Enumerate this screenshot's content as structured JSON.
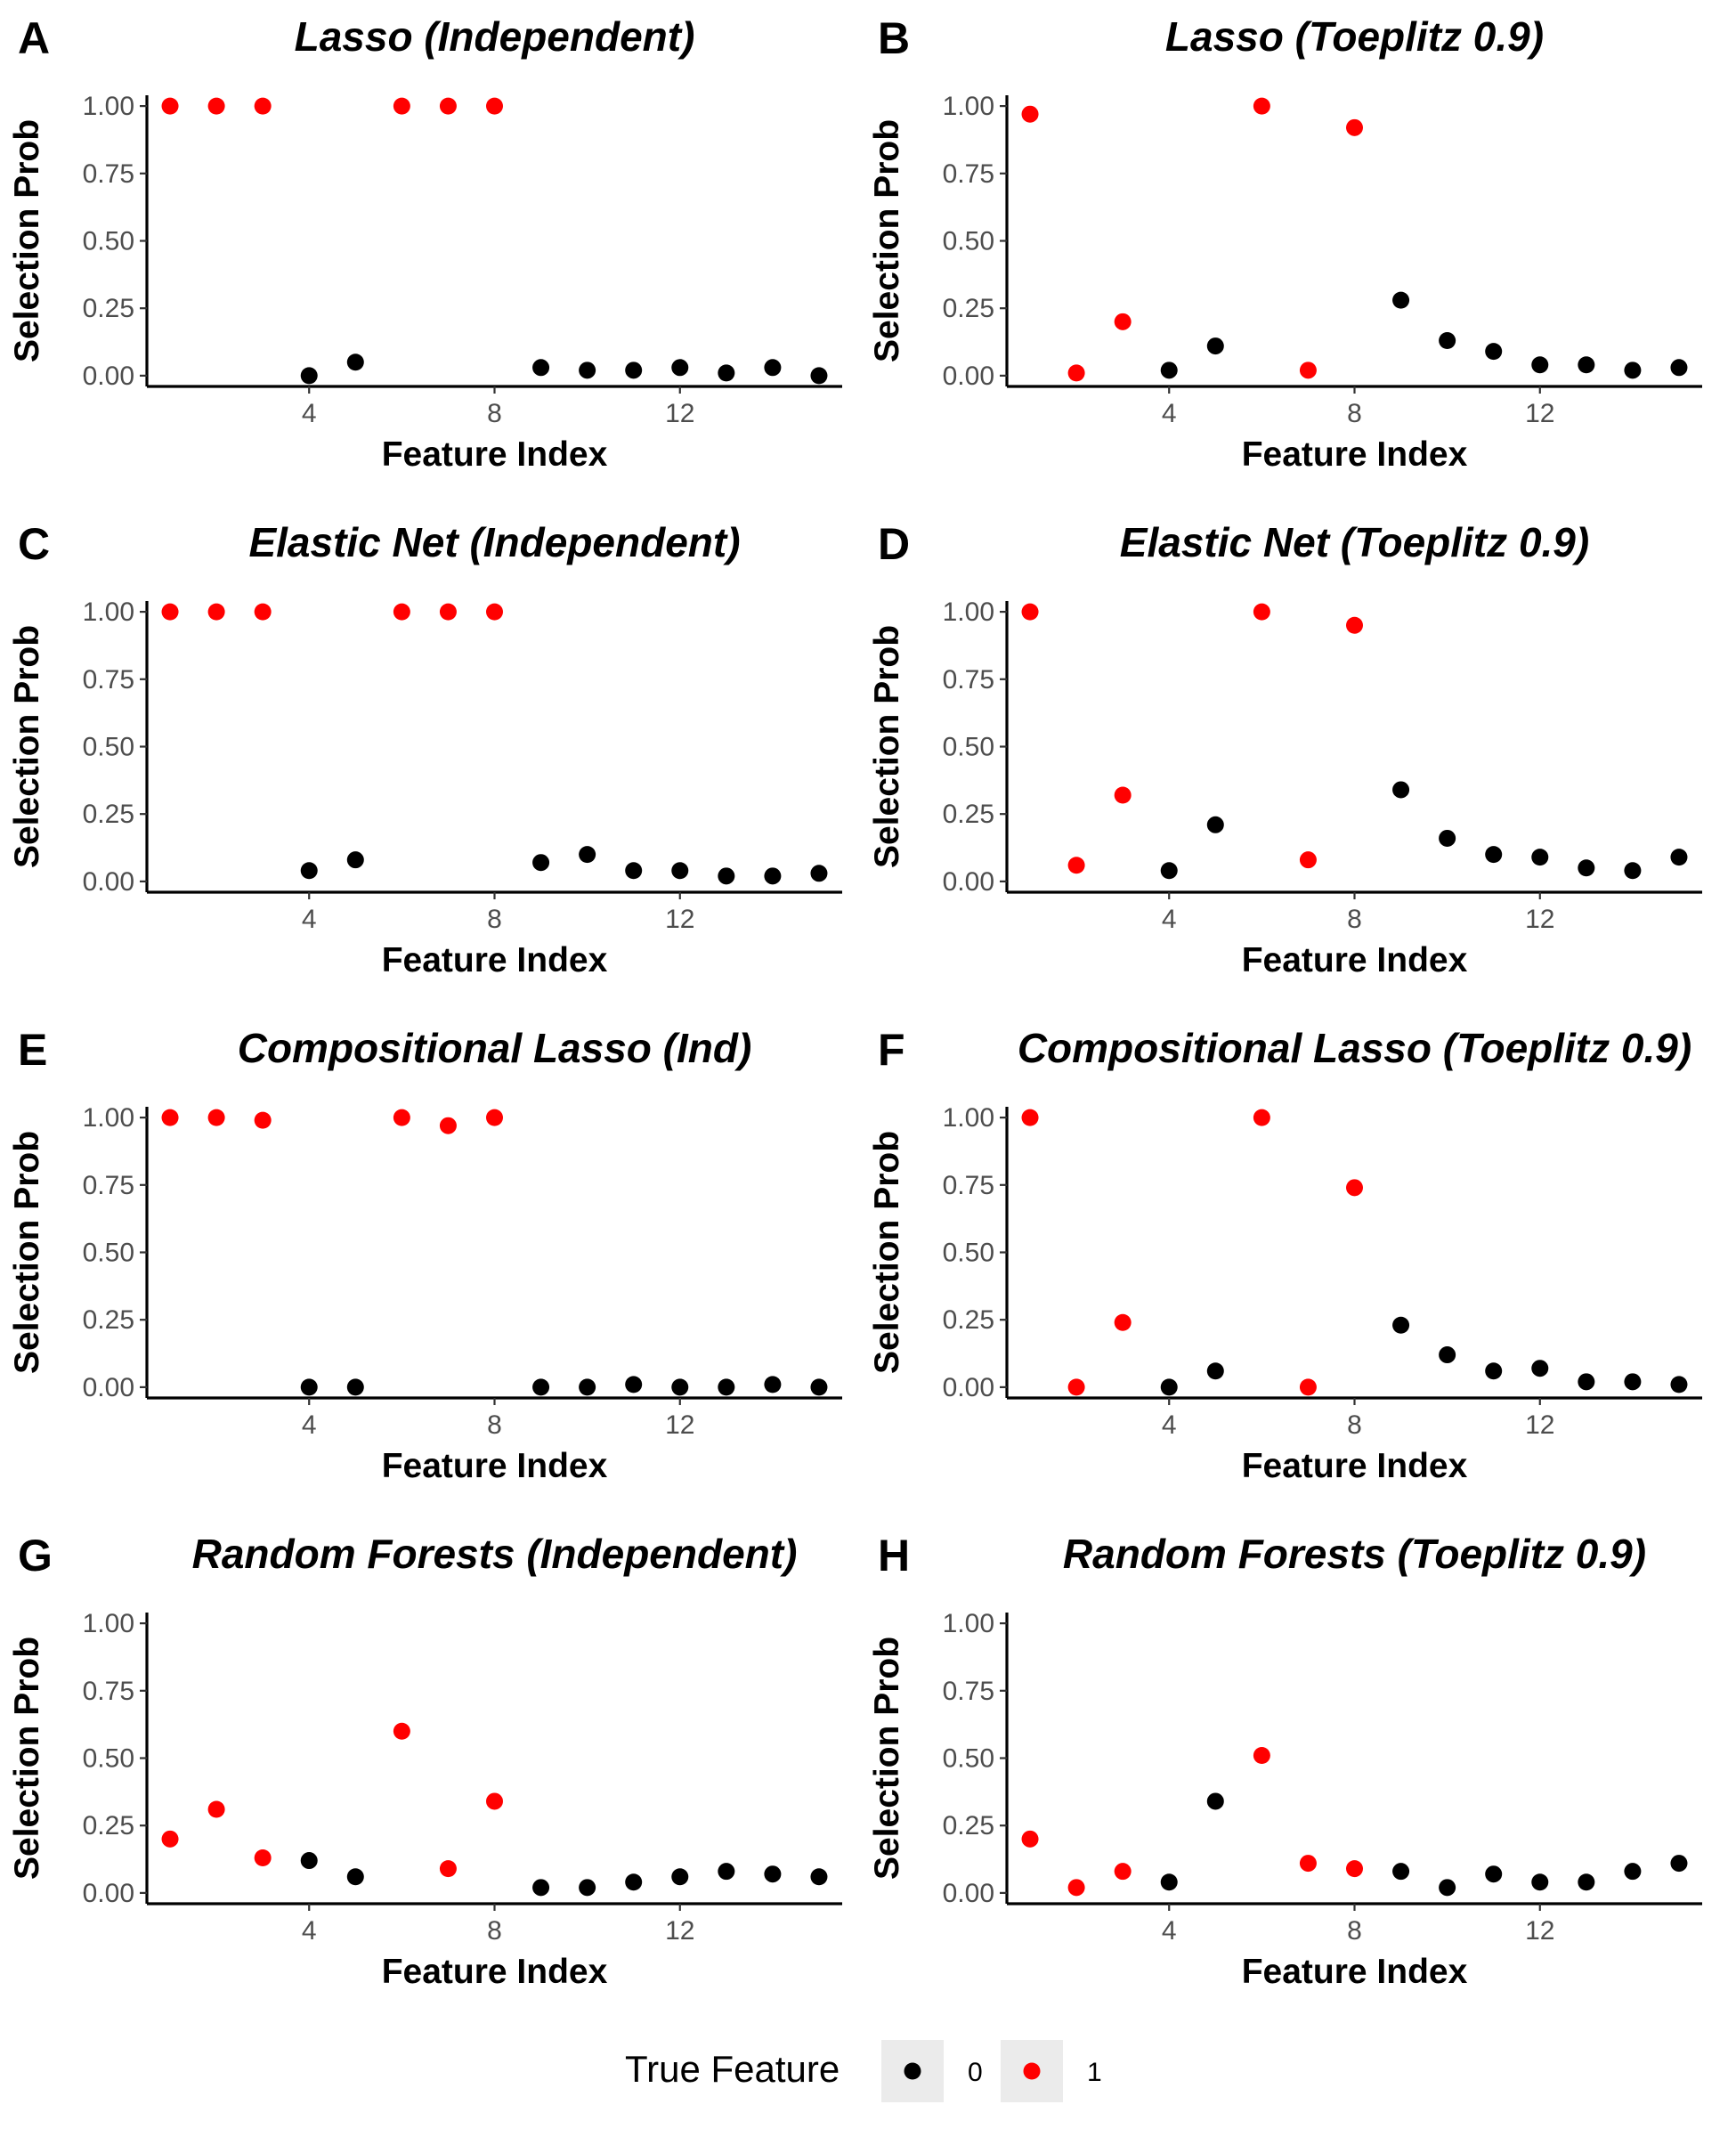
{
  "legend": {
    "title": "True Feature",
    "entries": [
      {
        "label": "0",
        "color": "#000000"
      },
      {
        "label": "1",
        "color": "#ff0000"
      }
    ]
  },
  "colors": {
    "false_feature": "#000000",
    "true_feature": "#ff0000",
    "legend_key_bg": "#ebebeb"
  },
  "chart_data": [
    {
      "letter": "A",
      "type": "scatter",
      "title": "Lasso (Independent)",
      "xlabel": "Feature Index",
      "ylabel": "Selection Prob",
      "xticks": [
        4,
        8,
        12
      ],
      "yticks": [
        "0.00",
        "0.25",
        "0.50",
        "0.75",
        "1.00"
      ],
      "xlim": [
        0.5,
        15.5
      ],
      "ylim": [
        -0.04,
        1.04
      ],
      "grid": false,
      "series": [
        {
          "name": "0",
          "x": [
            4,
            5,
            9,
            10,
            11,
            12,
            13,
            14,
            15
          ],
          "y": [
            0.0,
            0.05,
            0.03,
            0.02,
            0.02,
            0.03,
            0.01,
            0.03,
            0.0
          ]
        },
        {
          "name": "1",
          "x": [
            1,
            2,
            3,
            6,
            7,
            8
          ],
          "y": [
            1.0,
            1.0,
            1.0,
            1.0,
            1.0,
            1.0
          ]
        }
      ]
    },
    {
      "letter": "B",
      "type": "scatter",
      "title": "Lasso (Toeplitz 0.9)",
      "xlabel": "Feature Index",
      "ylabel": "Selection Prob",
      "xticks": [
        4,
        8,
        12
      ],
      "yticks": [
        "0.00",
        "0.25",
        "0.50",
        "0.75",
        "1.00"
      ],
      "xlim": [
        0.5,
        15.5
      ],
      "ylim": [
        -0.04,
        1.04
      ],
      "grid": false,
      "series": [
        {
          "name": "0",
          "x": [
            4,
            5,
            9,
            10,
            11,
            12,
            13,
            14,
            15
          ],
          "y": [
            0.02,
            0.11,
            0.28,
            0.13,
            0.09,
            0.04,
            0.04,
            0.02,
            0.03
          ]
        },
        {
          "name": "1",
          "x": [
            1,
            2,
            3,
            6,
            7,
            8
          ],
          "y": [
            0.97,
            0.01,
            0.2,
            1.0,
            0.02,
            0.92
          ]
        }
      ]
    },
    {
      "letter": "C",
      "type": "scatter",
      "title": "Elastic Net (Independent)",
      "xlabel": "Feature Index",
      "ylabel": "Selection Prob",
      "xticks": [
        4,
        8,
        12
      ],
      "yticks": [
        "0.00",
        "0.25",
        "0.50",
        "0.75",
        "1.00"
      ],
      "xlim": [
        0.5,
        15.5
      ],
      "ylim": [
        -0.04,
        1.04
      ],
      "grid": false,
      "series": [
        {
          "name": "0",
          "x": [
            4,
            5,
            9,
            10,
            11,
            12,
            13,
            14,
            15
          ],
          "y": [
            0.04,
            0.08,
            0.07,
            0.1,
            0.04,
            0.04,
            0.02,
            0.02,
            0.03
          ]
        },
        {
          "name": "1",
          "x": [
            1,
            2,
            3,
            6,
            7,
            8
          ],
          "y": [
            1.0,
            1.0,
            1.0,
            1.0,
            1.0,
            1.0
          ]
        }
      ]
    },
    {
      "letter": "D",
      "type": "scatter",
      "title": "Elastic Net (Toeplitz 0.9)",
      "xlabel": "Feature Index",
      "ylabel": "Selection Prob",
      "xticks": [
        4,
        8,
        12
      ],
      "yticks": [
        "0.00",
        "0.25",
        "0.50",
        "0.75",
        "1.00"
      ],
      "xlim": [
        0.5,
        15.5
      ],
      "ylim": [
        -0.04,
        1.04
      ],
      "grid": false,
      "series": [
        {
          "name": "0",
          "x": [
            4,
            5,
            9,
            10,
            11,
            12,
            13,
            14,
            15
          ],
          "y": [
            0.04,
            0.21,
            0.34,
            0.16,
            0.1,
            0.09,
            0.05,
            0.04,
            0.09
          ]
        },
        {
          "name": "1",
          "x": [
            1,
            2,
            3,
            6,
            7,
            8
          ],
          "y": [
            1.0,
            0.06,
            0.32,
            1.0,
            0.08,
            0.95
          ]
        }
      ]
    },
    {
      "letter": "E",
      "type": "scatter",
      "title": "Compositional Lasso (Ind)",
      "xlabel": "Feature Index",
      "ylabel": "Selection Prob",
      "xticks": [
        4,
        8,
        12
      ],
      "yticks": [
        "0.00",
        "0.25",
        "0.50",
        "0.75",
        "1.00"
      ],
      "xlim": [
        0.5,
        15.5
      ],
      "ylim": [
        -0.04,
        1.04
      ],
      "grid": false,
      "series": [
        {
          "name": "0",
          "x": [
            4,
            5,
            9,
            10,
            11,
            12,
            13,
            14,
            15
          ],
          "y": [
            0.0,
            0.0,
            0.0,
            0.0,
            0.01,
            0.0,
            0.0,
            0.01,
            0.0
          ]
        },
        {
          "name": "1",
          "x": [
            1,
            2,
            3,
            6,
            7,
            8
          ],
          "y": [
            1.0,
            1.0,
            0.99,
            1.0,
            0.97,
            1.0
          ]
        }
      ]
    },
    {
      "letter": "F",
      "type": "scatter",
      "title": "Compositional Lasso (Toeplitz 0.9)",
      "xlabel": "Feature Index",
      "ylabel": "Selection Prob",
      "xticks": [
        4,
        8,
        12
      ],
      "yticks": [
        "0.00",
        "0.25",
        "0.50",
        "0.75",
        "1.00"
      ],
      "xlim": [
        0.5,
        15.5
      ],
      "ylim": [
        -0.04,
        1.04
      ],
      "grid": false,
      "series": [
        {
          "name": "0",
          "x": [
            4,
            5,
            9,
            10,
            11,
            12,
            13,
            14,
            15
          ],
          "y": [
            0.0,
            0.06,
            0.23,
            0.12,
            0.06,
            0.07,
            0.02,
            0.02,
            0.01
          ]
        },
        {
          "name": "1",
          "x": [
            1,
            2,
            3,
            6,
            7,
            8
          ],
          "y": [
            1.0,
            0.0,
            0.24,
            1.0,
            0.0,
            0.74
          ]
        }
      ]
    },
    {
      "letter": "G",
      "type": "scatter",
      "title": "Random Forests (Independent)",
      "xlabel": "Feature Index",
      "ylabel": "Selection Prob",
      "xticks": [
        4,
        8,
        12
      ],
      "yticks": [
        "0.00",
        "0.25",
        "0.50",
        "0.75",
        "1.00"
      ],
      "xlim": [
        0.5,
        15.5
      ],
      "ylim": [
        -0.04,
        1.04
      ],
      "grid": false,
      "series": [
        {
          "name": "0",
          "x": [
            4,
            5,
            9,
            10,
            11,
            12,
            13,
            14,
            15
          ],
          "y": [
            0.12,
            0.06,
            0.02,
            0.02,
            0.04,
            0.06,
            0.08,
            0.07,
            0.06
          ]
        },
        {
          "name": "1",
          "x": [
            1,
            2,
            3,
            6,
            7,
            8
          ],
          "y": [
            0.2,
            0.31,
            0.13,
            0.6,
            0.09,
            0.34
          ]
        }
      ]
    },
    {
      "letter": "H",
      "type": "scatter",
      "title": "Random Forests (Toeplitz 0.9)",
      "xlabel": "Feature Index",
      "ylabel": "Selection Prob",
      "xticks": [
        4,
        8,
        12
      ],
      "yticks": [
        "0.00",
        "0.25",
        "0.50",
        "0.75",
        "1.00"
      ],
      "xlim": [
        0.5,
        15.5
      ],
      "ylim": [
        -0.04,
        1.04
      ],
      "grid": false,
      "series": [
        {
          "name": "0",
          "x": [
            4,
            5,
            9,
            10,
            11,
            12,
            13,
            14,
            15
          ],
          "y": [
            0.04,
            0.34,
            0.08,
            0.02,
            0.07,
            0.04,
            0.04,
            0.08,
            0.11
          ]
        },
        {
          "name": "1",
          "x": [
            1,
            2,
            3,
            6,
            7,
            8
          ],
          "y": [
            0.2,
            0.02,
            0.08,
            0.51,
            0.11,
            0.09
          ]
        }
      ]
    }
  ]
}
